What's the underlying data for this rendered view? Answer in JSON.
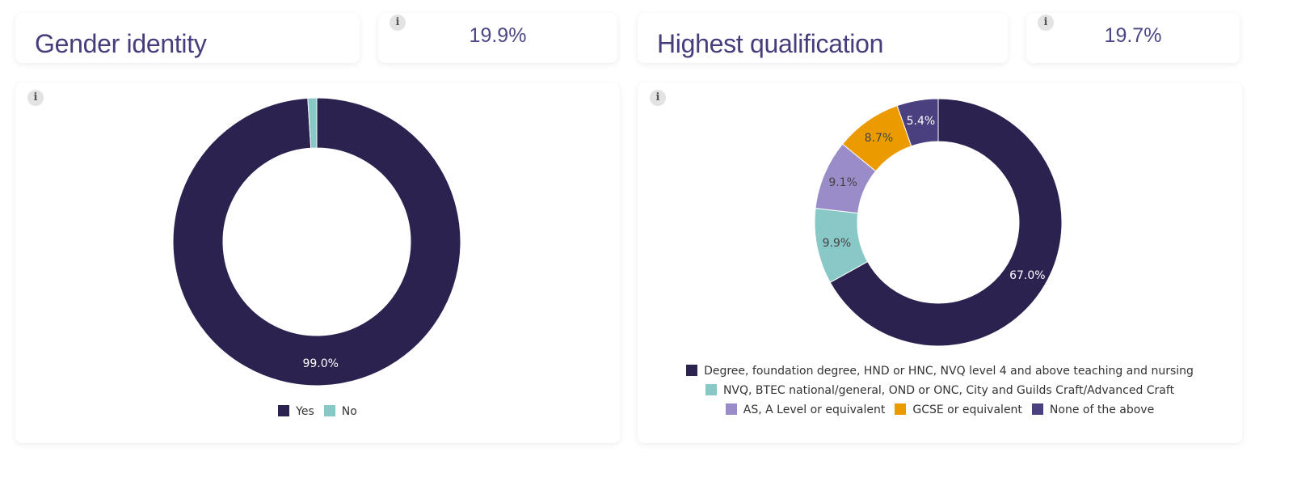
{
  "panels": {
    "left": {
      "title": "Gender identity",
      "stat": "19.9%",
      "info_glyph": "i"
    },
    "right": {
      "title": "Highest qualification",
      "stat": "19.7%",
      "info_glyph": "i"
    }
  },
  "icons": {
    "info": "info-icon"
  },
  "chart_data": [
    {
      "type": "pie",
      "donut": true,
      "title": "Gender identity",
      "legend_position": "bottom",
      "slices": [
        {
          "label": "Yes",
          "value": 99.0,
          "display": "99.0%",
          "color": "#2c2250",
          "label_color": "#ffffff"
        },
        {
          "label": "No",
          "value": 1.0,
          "display": "",
          "color": "#88c9c8",
          "label_color": "#333333"
        }
      ]
    },
    {
      "type": "pie",
      "donut": true,
      "title": "Highest qualification",
      "legend_position": "bottom",
      "slices": [
        {
          "label": "Degree, foundation degree, HND or HNC, NVQ level 4 and above teaching and nursing",
          "value": 67.0,
          "display": "67.0%",
          "color": "#2c2250",
          "label_color": "#ffffff"
        },
        {
          "label": "NVQ, BTEC national/general, OND or ONC, City and Guilds Craft/Advanced Craft",
          "value": 9.9,
          "display": "9.9%",
          "color": "#88c9c8",
          "label_color": "#444444"
        },
        {
          "label": "AS, A Level or equivalent",
          "value": 9.1,
          "display": "9.1%",
          "color": "#9a8cc8",
          "label_color": "#444444"
        },
        {
          "label": "GCSE or equivalent",
          "value": 8.7,
          "display": "8.7%",
          "color": "#eb9b00",
          "label_color": "#444444"
        },
        {
          "label": "None of the above",
          "value": 5.4,
          "display": "5.4%",
          "color": "#4a3f7f",
          "label_color": "#ffffff"
        }
      ]
    }
  ]
}
